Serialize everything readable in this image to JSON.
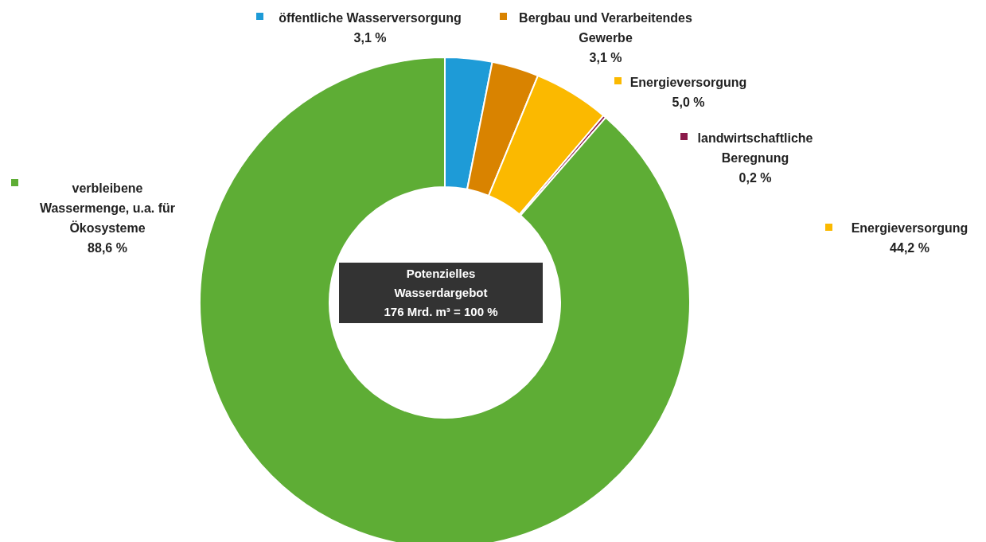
{
  "chart_data": {
    "type": "donut",
    "categories": [
      "öffentliche Wasserversorgung",
      "Bergbau und Verarbeitendes Gewerbe",
      "Energieversorgung",
      "landwirtschaftliche Beregnung",
      "verbleibene Wassermenge, u.a. für Ökosysteme"
    ],
    "values": [
      3.1,
      3.1,
      5.0,
      0.2,
      88.6
    ],
    "value_labels": [
      "3,1 %",
      "3,1 %",
      "5,0 %",
      "0,2 %",
      "88,6 %"
    ],
    "colors": [
      "#1e9bd7",
      "#d98300",
      "#fbb900",
      "#8b1a4a",
      "#5ead35"
    ],
    "annotations": [
      "Potenzielles\nWasserdargebot\n176 Mrd. m³ = 100 %",
      "Energieversorgung\n44,2 %"
    ],
    "legend": "top"
  }
}
